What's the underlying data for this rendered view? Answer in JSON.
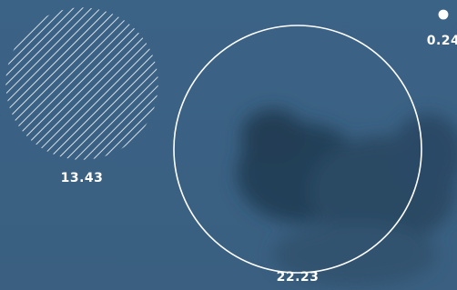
{
  "chart_data": {
    "type": "bubble",
    "values": [
      13.43,
      22.23,
      0.24
    ],
    "color": "#ffffff"
  }
}
